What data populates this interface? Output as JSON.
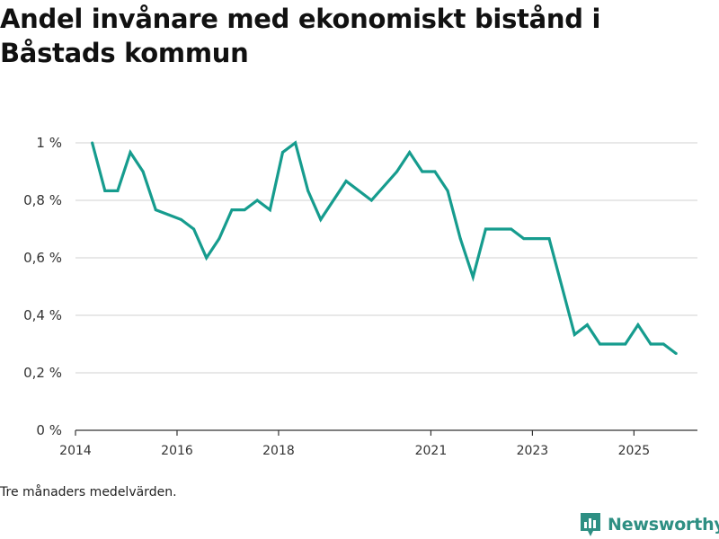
{
  "header": {
    "title": "Andel invånare med ekonomiskt bistånd i Båstads kommun"
  },
  "footer": {
    "note": "Tre månaders medelvärden.",
    "brand": "Newsworthy"
  },
  "colors": {
    "line": "#169c8e",
    "grid": "#d9d9d9",
    "axis": "#333333",
    "brand": "#2e8f83"
  },
  "chart_data": {
    "type": "line",
    "title": "Andel invånare med ekonomiskt bistånd i Båstads kommun",
    "xlabel": "",
    "ylabel": "",
    "ylim": [
      0,
      1.0
    ],
    "xlim": [
      2014.0,
      2026.25
    ],
    "y_ticks": [
      0,
      0.2,
      0.4,
      0.6,
      0.8,
      1.0
    ],
    "y_tick_labels": [
      "0 %",
      "0,2 %",
      "0,4 %",
      "0,6 %",
      "0,8 %",
      "1 %"
    ],
    "x_ticks": [
      2014,
      2016,
      2018,
      2021,
      2023,
      2025
    ],
    "x_tick_labels": [
      "2014",
      "2016",
      "2018",
      "2021",
      "2023",
      "2025"
    ],
    "grid": true,
    "series": [
      {
        "name": "Andel invånare med ekonomiskt bistånd",
        "x": [
          2014.33,
          2014.58,
          2014.83,
          2015.08,
          2015.33,
          2015.58,
          2015.83,
          2016.08,
          2016.33,
          2016.58,
          2016.83,
          2017.08,
          2017.33,
          2017.58,
          2017.83,
          2018.08,
          2018.33,
          2018.58,
          2018.83,
          2019.33,
          2019.83,
          2020.33,
          2020.58,
          2020.83,
          2021.08,
          2021.33,
          2021.58,
          2021.83,
          2022.08,
          2022.33,
          2022.58,
          2022.83,
          2023.08,
          2023.33,
          2023.58,
          2023.83,
          2024.08,
          2024.33,
          2024.58,
          2024.83,
          2025.08,
          2025.33,
          2025.58,
          2025.83
        ],
        "values": [
          1.0,
          0.833,
          0.833,
          0.967,
          0.9,
          0.767,
          0.75,
          0.733,
          0.7,
          0.6,
          0.667,
          0.767,
          0.767,
          0.8,
          0.767,
          0.967,
          1.0,
          0.833,
          0.733,
          0.867,
          0.8,
          0.9,
          0.967,
          0.9,
          0.9,
          0.833,
          0.667,
          0.533,
          0.7,
          0.7,
          0.7,
          0.667,
          0.667,
          0.667,
          0.5,
          0.333,
          0.367,
          0.3,
          0.3,
          0.3,
          0.367,
          0.3,
          0.3,
          0.267
        ]
      }
    ]
  }
}
